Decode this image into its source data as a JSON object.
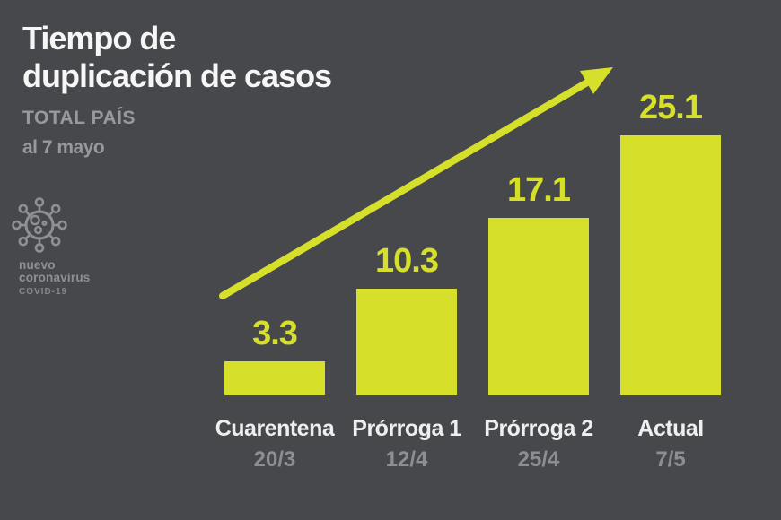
{
  "header": {
    "title_lines": [
      "Tiempo de",
      "duplicación de casos"
    ],
    "subtitle": "TOTAL PAÍS",
    "date_note": "al 7 mayo"
  },
  "branding": {
    "icon": "coronavirus-icon",
    "name_line1": "nuevo",
    "name_line2": "coronavirus",
    "sub_label": "COVID-19"
  },
  "colors": {
    "background": "#46484c",
    "accent_yellow": "#d6e02a",
    "text_white": "#f6f6f6",
    "text_gray": "#98999d",
    "text_gray_dim": "#8d8e92"
  },
  "chart_data": {
    "type": "bar",
    "title": "Tiempo de duplicación de casos",
    "subtitle": "TOTAL PAÍS",
    "as_of": "al 7 mayo",
    "categories": [
      "Cuarentena",
      "Prórroga 1",
      "Prórroga 2",
      "Actual"
    ],
    "category_dates": [
      "20/3",
      "12/4",
      "25/4",
      "7/5"
    ],
    "values": [
      3.3,
      10.3,
      17.1,
      25.1
    ],
    "bar_color": "#d6e02a",
    "value_labels_shown": true,
    "axes_shown": false,
    "grid": false,
    "legend": false,
    "ylim": [
      0,
      26
    ],
    "annotations": [
      "upward-trend-arrow"
    ]
  }
}
